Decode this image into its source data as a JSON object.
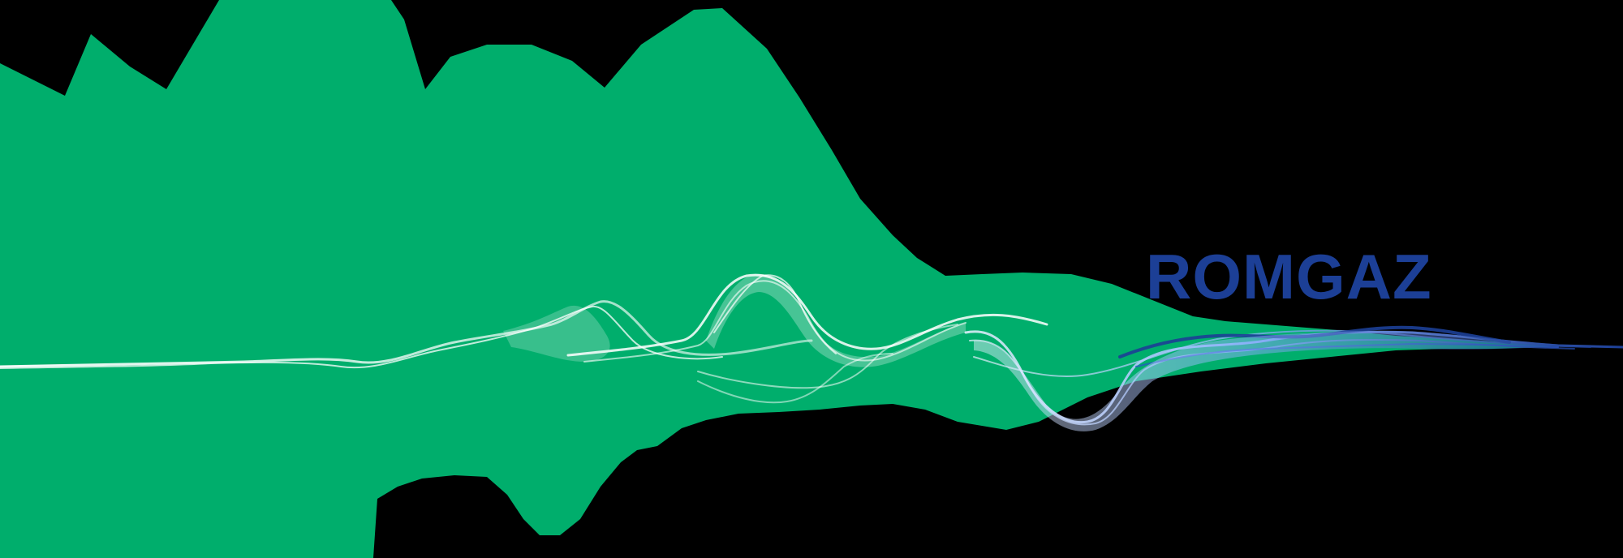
{
  "brand": {
    "name": "ROMGAZ",
    "wordmark_color": "#1c3f96"
  },
  "artwork": {
    "background_color": "#000000",
    "mountain_color": "#00ae6c",
    "wave_colors": [
      "#ffffff",
      "#9ec3ff",
      "#1c3f96"
    ],
    "icons": [
      "green-mountain-shape",
      "white-wave-ribbons",
      "blue-wave-ribbons"
    ]
  }
}
